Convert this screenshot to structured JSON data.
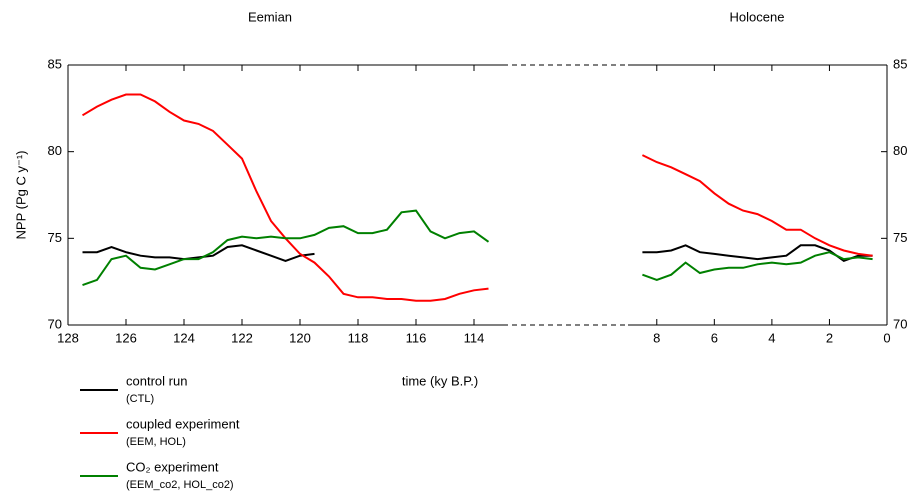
{
  "chart_data": [
    {
      "type": "line",
      "title": "Eemian",
      "y_label": "NPP (Pg C y⁻¹)",
      "x_label": "time (ky B.P.)",
      "x": [
        127.5,
        127,
        126.5,
        126,
        125.5,
        125,
        124.5,
        124,
        123.5,
        123,
        122.5,
        122,
        121.5,
        121,
        120.5,
        120,
        119.5,
        119,
        118.5,
        118,
        117.5,
        117,
        116.5,
        116,
        115.5,
        115,
        114.5,
        114,
        113.5
      ],
      "series": [
        {
          "name": "control run",
          "note": "(CTL)",
          "color": "#000000",
          "values": [
            74.2,
            74.2,
            74.5,
            74.2,
            74.0,
            73.9,
            73.9,
            73.8,
            73.9,
            74.0,
            74.5,
            74.6,
            74.3,
            74.0,
            73.7,
            74.0,
            74.1,
            null,
            null,
            null,
            null,
            null,
            null,
            null,
            null,
            null,
            null,
            null,
            null
          ]
        },
        {
          "name": "coupled experiment",
          "note": "(EEM, HOL)",
          "color": "#ff0000",
          "values": [
            82.1,
            82.6,
            83.0,
            83.3,
            83.3,
            82.9,
            82.3,
            81.8,
            81.6,
            81.2,
            80.4,
            79.6,
            77.7,
            76.0,
            75.0,
            74.1,
            73.6,
            72.8,
            71.8,
            71.6,
            71.6,
            71.5,
            71.5,
            71.4,
            71.4,
            71.5,
            71.8,
            72.0,
            72.1
          ]
        },
        {
          "name": "CO₂ experiment",
          "note": "(EEM_co2, HOL_co2)",
          "color": "#008000",
          "values": [
            72.3,
            72.6,
            73.8,
            74.0,
            73.3,
            73.2,
            73.5,
            73.8,
            73.8,
            74.2,
            74.9,
            75.1,
            75.0,
            75.1,
            75.0,
            75.0,
            75.2,
            75.6,
            75.7,
            75.3,
            75.3,
            75.5,
            76.5,
            76.6,
            75.4,
            75.0,
            75.3,
            75.4,
            74.8
          ]
        }
      ],
      "xlim": [
        128,
        113
      ],
      "xticks": [
        128,
        126,
        124,
        122,
        120,
        118,
        116,
        114
      ],
      "ylim": [
        70,
        85
      ],
      "yticks": [
        70,
        75,
        80,
        85
      ]
    },
    {
      "type": "line",
      "title": "Holocene",
      "x": [
        8.5,
        8,
        7.5,
        7,
        6.5,
        6,
        5.5,
        5,
        4.5,
        4,
        3.5,
        3,
        2.5,
        2,
        1.5,
        1,
        0.5
      ],
      "series": [
        {
          "color": "#000000",
          "values": [
            74.2,
            74.2,
            74.3,
            74.6,
            74.2,
            74.1,
            74.0,
            73.9,
            73.8,
            73.9,
            74.0,
            74.6,
            74.6,
            74.3,
            73.7,
            74.0,
            74.0
          ]
        },
        {
          "color": "#ff0000",
          "values": [
            79.8,
            79.4,
            79.1,
            78.7,
            78.3,
            77.6,
            77.0,
            76.6,
            76.4,
            76.0,
            75.5,
            75.5,
            75.0,
            74.6,
            74.3,
            74.1,
            74.0
          ]
        },
        {
          "color": "#008000",
          "values": [
            72.9,
            72.6,
            72.9,
            73.6,
            73.0,
            73.2,
            73.3,
            73.3,
            73.5,
            73.6,
            73.5,
            73.6,
            74.0,
            74.2,
            73.8,
            73.9,
            73.8
          ]
        }
      ],
      "xlim": [
        9,
        0
      ],
      "xticks": [
        8,
        6,
        4,
        2,
        0
      ],
      "ylim": [
        70,
        85
      ],
      "yticks": [
        70,
        75,
        80,
        85
      ]
    }
  ]
}
